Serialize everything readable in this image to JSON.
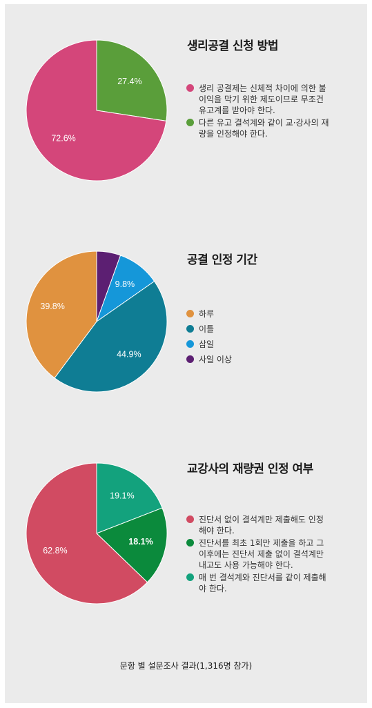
{
  "chart_data": [
    {
      "type": "pie",
      "title": "생리공결 신청 방법",
      "slices": [
        {
          "label": "생리 공결제는 신체적 차이에 의한 불\n이익을 막기 위한 제도이므로 무조건\n유고계를 받아야 한다.",
          "value": 72.6,
          "display": "72.6%",
          "color": "#d4467a"
        },
        {
          "label": "다른 유고 결석계와 같이 교·강사의 재\n량을 인정해야 한다.",
          "value": 27.4,
          "display": "27.4%",
          "color": "#5a9e3a"
        }
      ]
    },
    {
      "type": "pie",
      "title": "공결 인정 기간",
      "slices": [
        {
          "label": "하루",
          "value": 39.8,
          "display": "39.8%",
          "color": "#e0923f"
        },
        {
          "label": "이틀",
          "value": 44.9,
          "display": "44.9%",
          "color": "#0f7d94"
        },
        {
          "label": "삼일",
          "value": 9.8,
          "display": "9.8%",
          "color": "#1597d9"
        },
        {
          "label": "사일 이상",
          "value": 5.5,
          "display": "",
          "color": "#5c1f72"
        }
      ]
    },
    {
      "type": "pie",
      "title": "교강사의 재량권 인정 여부",
      "slices": [
        {
          "label": "진단서 없이 결석계만 제출해도 인정\n해야 한다.",
          "value": 62.8,
          "display": "62.8%",
          "color": "#d14b62"
        },
        {
          "label": "진단서를 최초 1회만 제출을 하고 그\n이후에는 진단서 제출 없이 결석계만\n내고도 사용 가능해야 한다.",
          "value": 18.1,
          "display": "18.1%",
          "color": "#0b8a3c"
        },
        {
          "label": "매 번 결석계와 진단서를 같이 제출해\n야 한다.",
          "value": 19.1,
          "display": "19.1%",
          "color": "#13a27d"
        }
      ]
    }
  ],
  "footer": "문항 별 설문조사 결과(1,316명 참가)"
}
